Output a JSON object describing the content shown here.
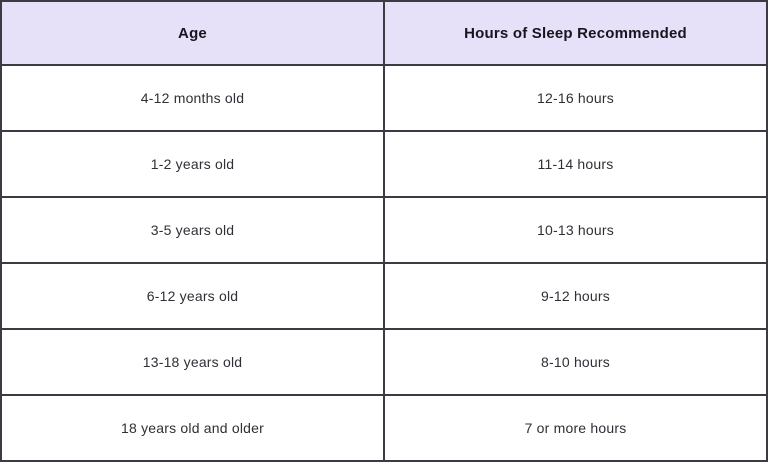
{
  "colors": {
    "header_bg": "#E6E1F8",
    "border": "#3B3B43",
    "header_text": "#16161E",
    "body_text": "#2F2F36",
    "row_bg": "#FFFFFF"
  },
  "table": {
    "headers": [
      "Age",
      "Hours of Sleep Recommended"
    ],
    "rows": [
      {
        "age": "4-12 months old",
        "hours": "12-16 hours"
      },
      {
        "age": "1-2 years old",
        "hours": "11-14 hours"
      },
      {
        "age": "3-5 years old",
        "hours": "10-13 hours"
      },
      {
        "age": "6-12 years old",
        "hours": "9-12 hours"
      },
      {
        "age": "13-18 years old",
        "hours": "8-10 hours"
      },
      {
        "age": "18 years old and older",
        "hours": "7 or more hours"
      }
    ]
  },
  "chart_data": {
    "type": "table",
    "columns": [
      "Age",
      "Hours of Sleep Recommended"
    ],
    "rows": [
      [
        "4-12 months old",
        "12-16 hours"
      ],
      [
        "1-2 years old",
        "11-14 hours"
      ],
      [
        "3-5 years old",
        "10-13 hours"
      ],
      [
        "6-12 years old",
        "9-12 hours"
      ],
      [
        "13-18 years old",
        "8-10 hours"
      ],
      [
        "18 years old and older",
        "7 or more hours"
      ]
    ]
  }
}
